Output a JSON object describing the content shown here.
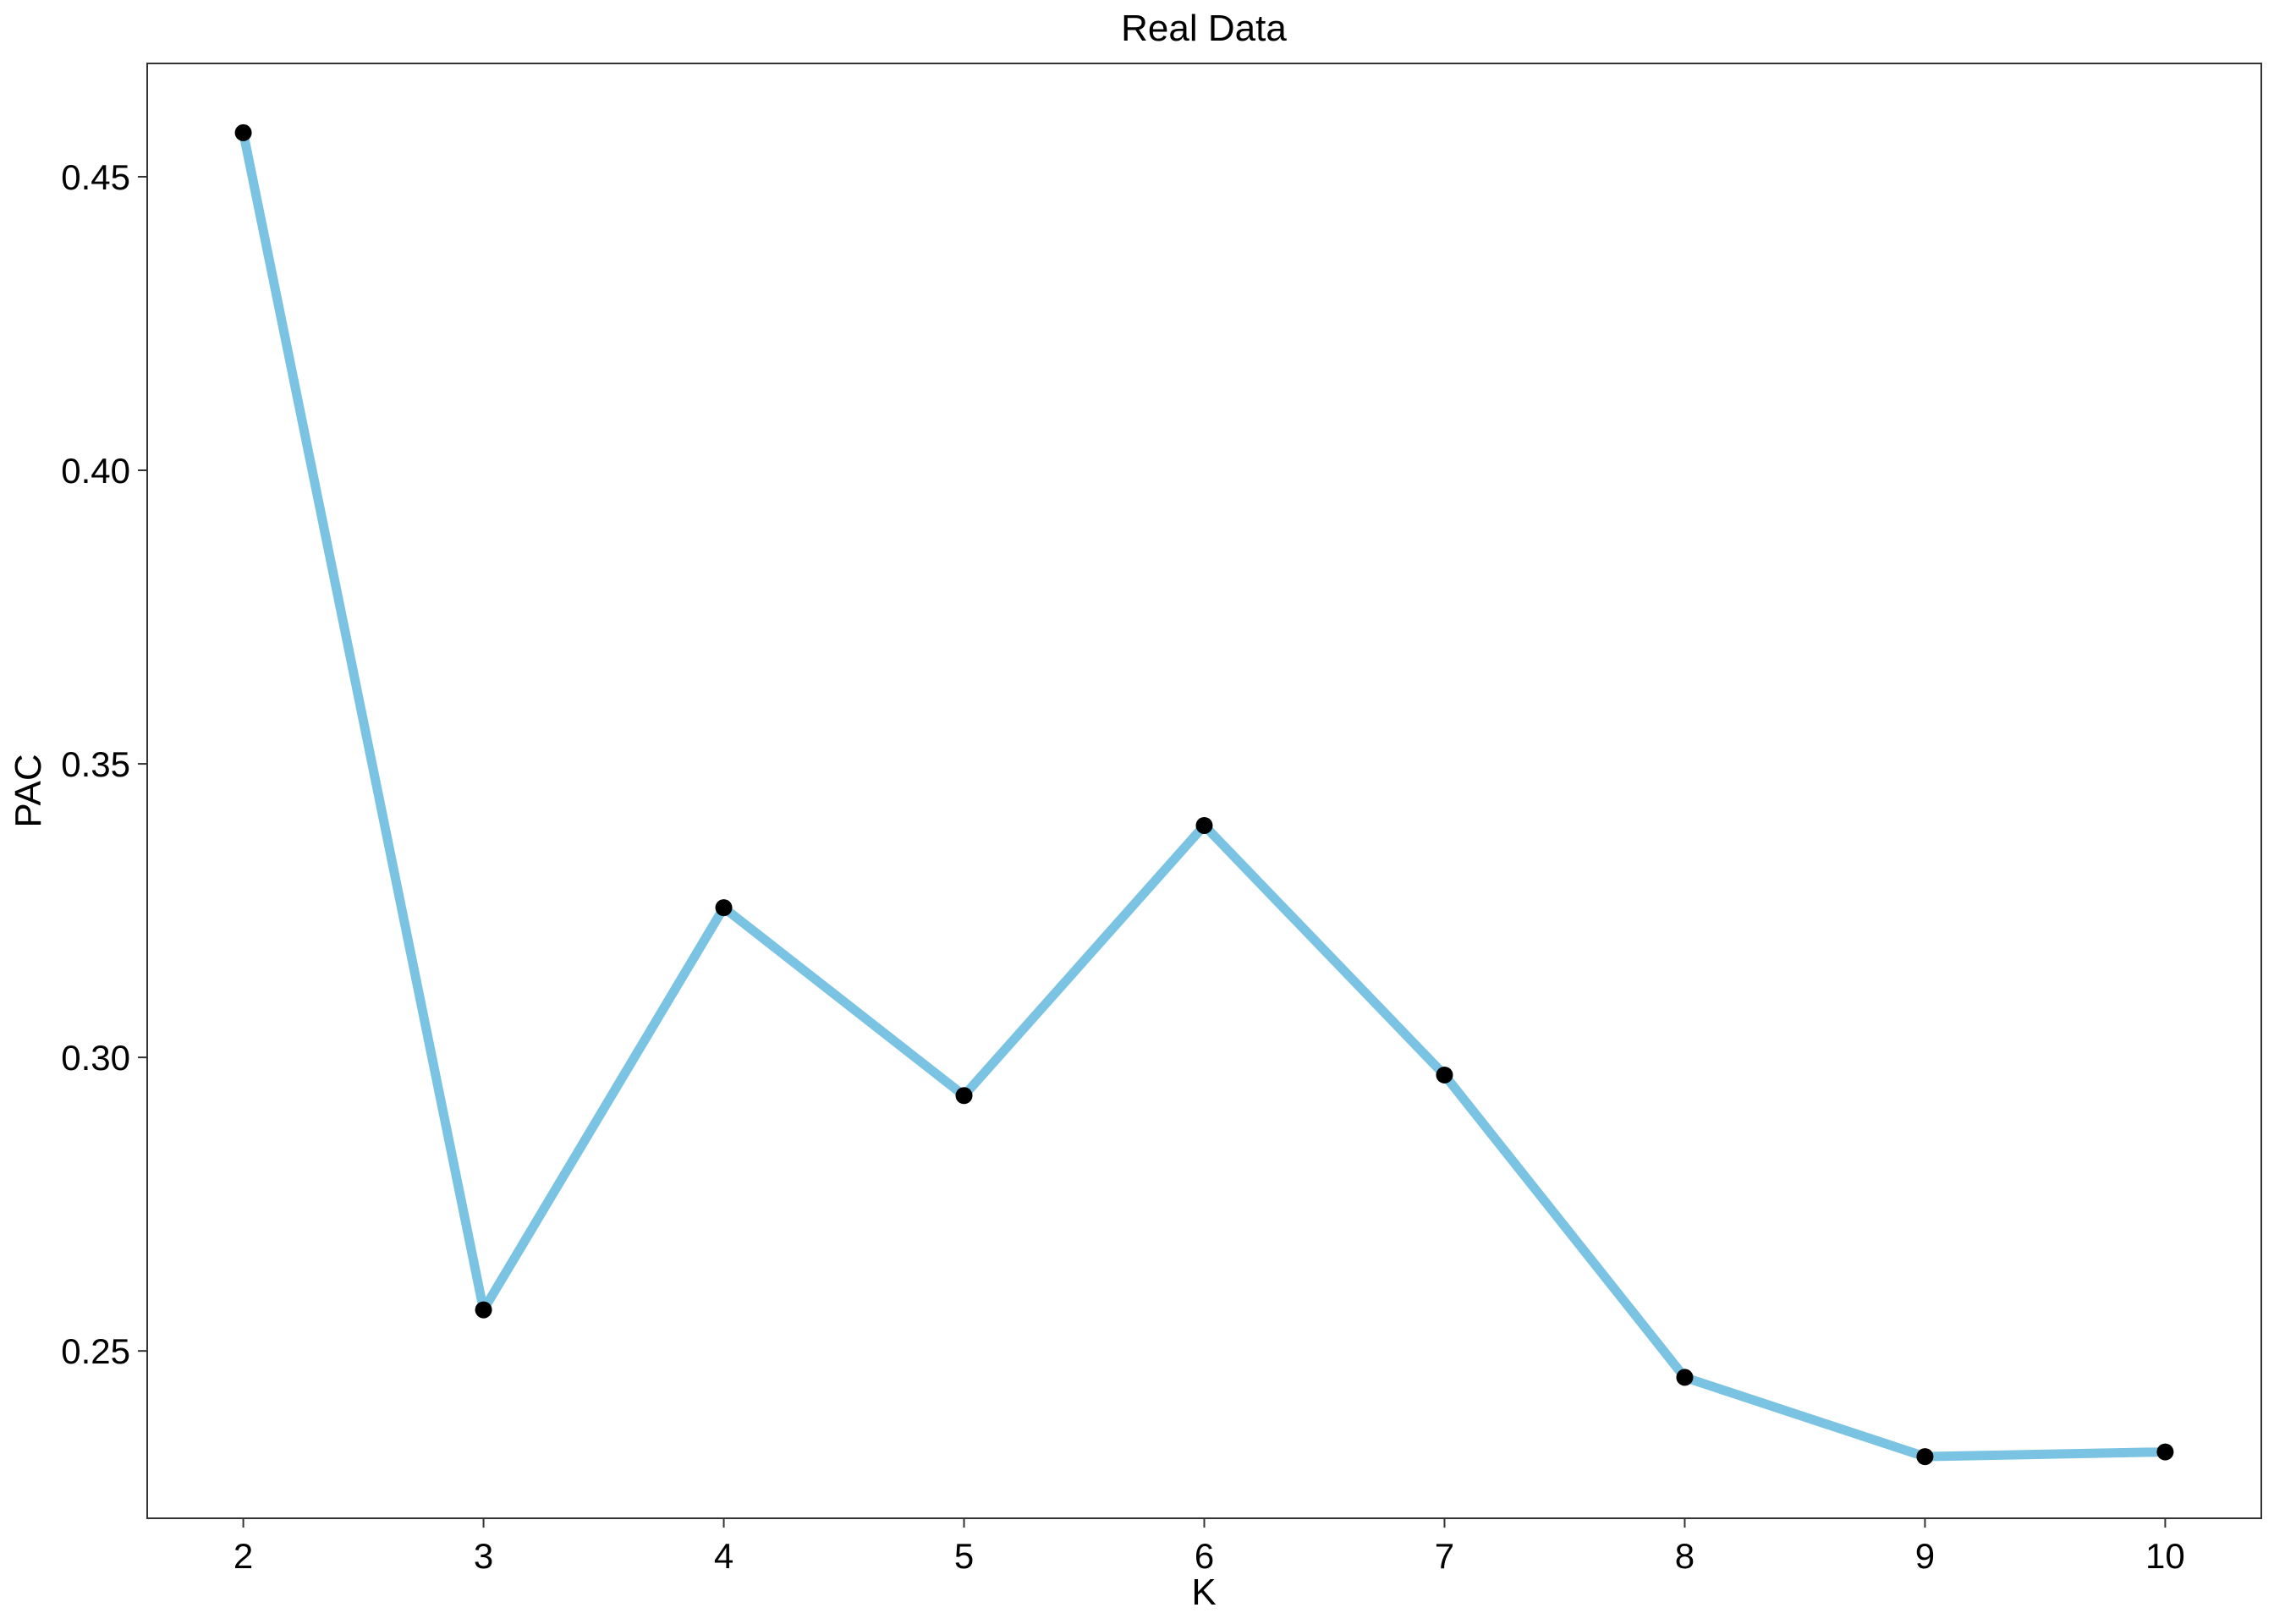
{
  "chart_data": {
    "type": "line",
    "title": "Real Data",
    "xlabel": "K",
    "ylabel": "PAC",
    "x": [
      2,
      3,
      4,
      5,
      6,
      7,
      8,
      9,
      10
    ],
    "series": [
      {
        "values": [
          0.4575,
          0.257,
          0.3255,
          0.2935,
          0.3395,
          0.297,
          0.2455,
          0.232,
          0.2328
        ]
      }
    ],
    "xlim": [
      1.6,
      10.4
    ],
    "ylim": [
      0.2215,
      0.4693
    ],
    "xticks": [
      "2",
      "3",
      "4",
      "5",
      "6",
      "7",
      "8",
      "9",
      "10"
    ],
    "yticks": [
      "0.25",
      "0.30",
      "0.35",
      "0.40",
      "0.45"
    ],
    "grid": false,
    "line_color": "#7AC3E2",
    "point_color": "#000000"
  }
}
